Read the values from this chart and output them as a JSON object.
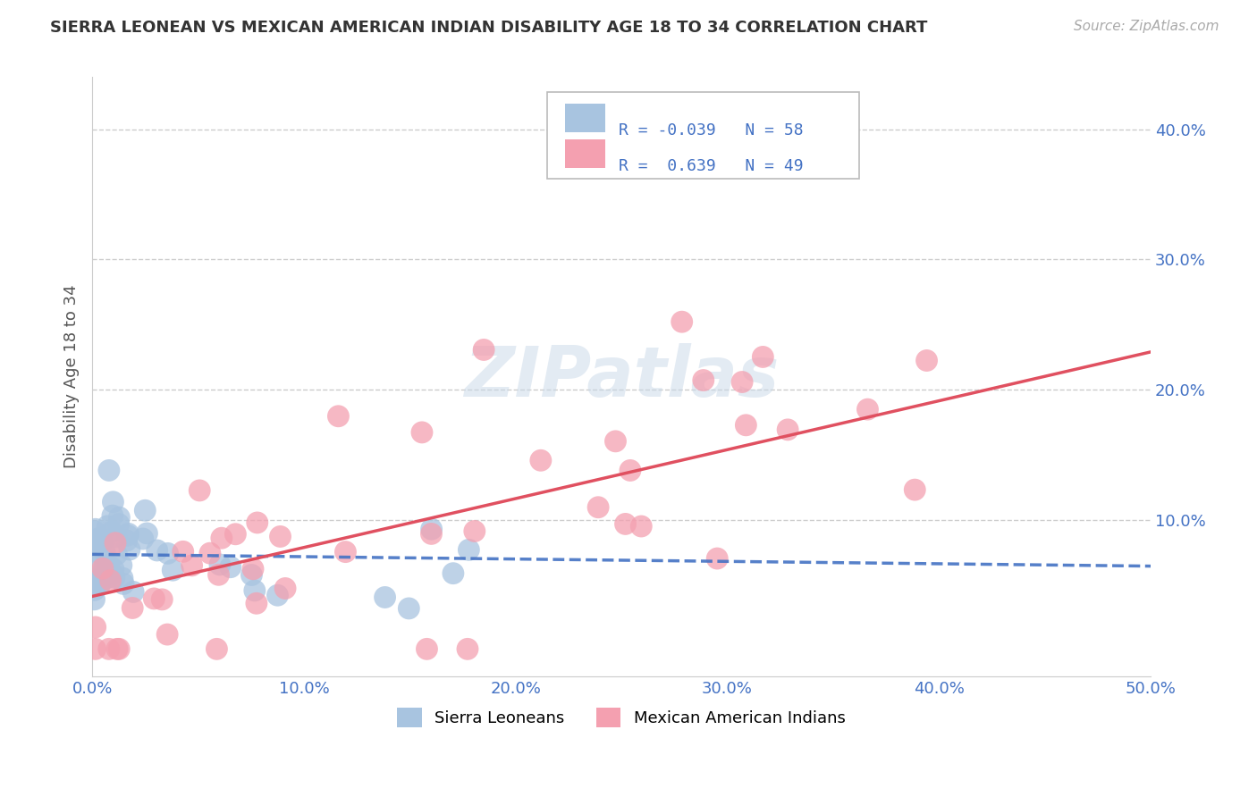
{
  "title": "SIERRA LEONEAN VS MEXICAN AMERICAN INDIAN DISABILITY AGE 18 TO 34 CORRELATION CHART",
  "source": "Source: ZipAtlas.com",
  "ylabel": "Disability Age 18 to 34",
  "xlim": [
    0.0,
    0.5
  ],
  "ylim": [
    -0.02,
    0.44
  ],
  "xtick_vals": [
    0.0,
    0.1,
    0.2,
    0.3,
    0.4,
    0.5
  ],
  "xtick_labels": [
    "0.0%",
    "10.0%",
    "20.0%",
    "30.0%",
    "40.0%",
    "50.0%"
  ],
  "ytick_vals": [
    0.1,
    0.2,
    0.3,
    0.4
  ],
  "ytick_labels": [
    "10.0%",
    "20.0%",
    "30.0%",
    "40.0%"
  ],
  "sierra_color": "#a8c4e0",
  "mexican_color": "#f4a0b0",
  "sierra_line_color": "#4472c4",
  "mexican_line_color": "#e05060",
  "R_sierra": -0.039,
  "N_sierra": 58,
  "R_mexican": 0.639,
  "N_mexican": 49,
  "legend_label_sierra": "Sierra Leoneans",
  "legend_label_mexican": "Mexican American Indians",
  "watermark": "ZIPatlas",
  "grid_color": "#cccccc",
  "background_color": "#ffffff",
  "title_fontsize": 13,
  "axis_tick_fontsize": 13,
  "ylabel_fontsize": 13,
  "sierra_scatter_seed": 10,
  "mexican_scatter_seed": 20
}
